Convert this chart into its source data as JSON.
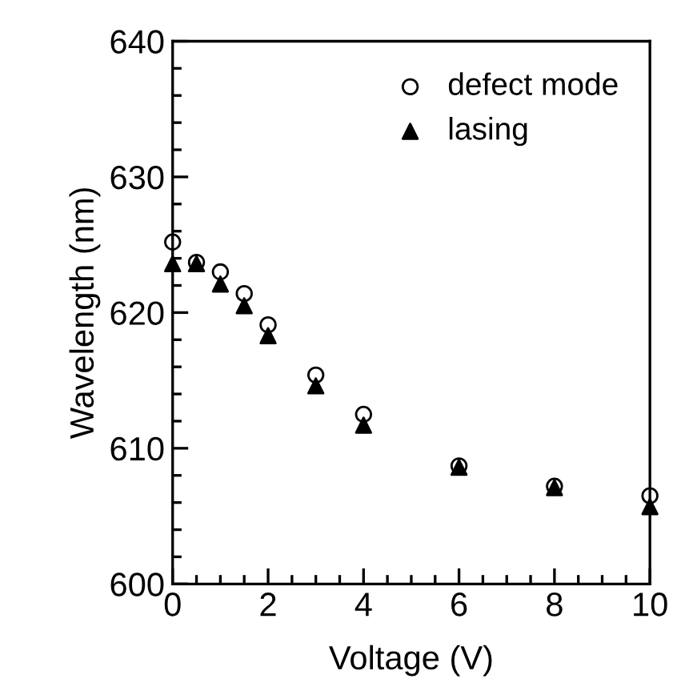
{
  "chart_data": {
    "type": "scatter",
    "xlabel": "Voltage (V)",
    "ylabel": "Wavelength (nm)",
    "x": [
      0,
      0.5,
      1,
      1.5,
      2,
      3,
      4,
      6,
      8,
      10
    ],
    "series": [
      {
        "name": "defect mode",
        "color": "#000000",
        "marker": "circle",
        "values": [
          625.2,
          623.7,
          623.0,
          621.4,
          619.1,
          615.4,
          612.5,
          608.7,
          607.2,
          606.5
        ]
      },
      {
        "name": "lasing",
        "color": "#000000",
        "marker": "triangle",
        "values": [
          623.6,
          623.6,
          622.1,
          620.5,
          618.3,
          614.6,
          611.7,
          608.6,
          607.1,
          605.7
        ]
      }
    ],
    "xlim": [
      0,
      10
    ],
    "xticks": [
      0,
      2,
      4,
      6,
      8,
      10
    ],
    "ylim": [
      600,
      640
    ],
    "yticks": [
      600,
      610,
      620,
      630,
      640
    ],
    "grid": false,
    "legend": "top right"
  }
}
